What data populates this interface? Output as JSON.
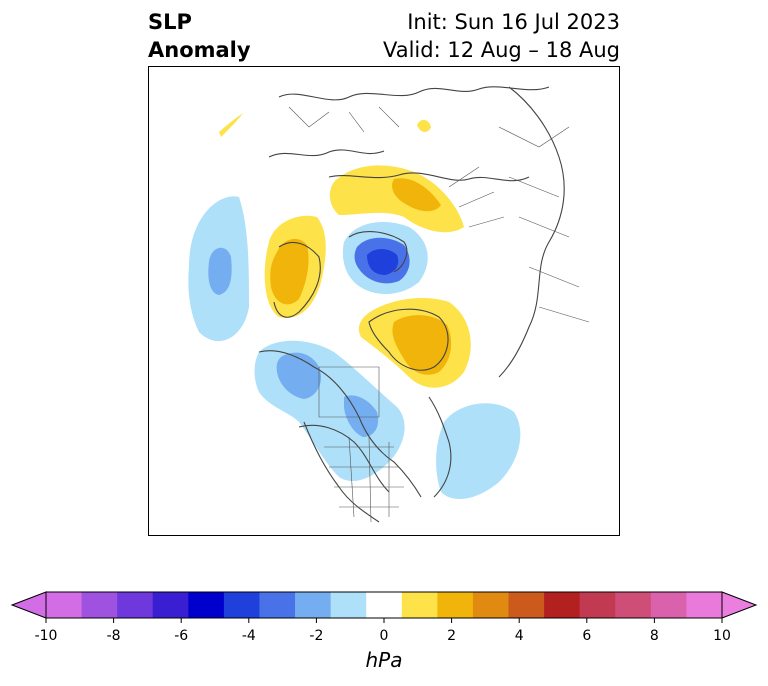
{
  "title": {
    "left_line1": "SLP",
    "left_line2": "Anomaly",
    "right_line1": "Init: Sun 16 Jul 2023",
    "right_line2": "Valid: 12 Aug – 18 Aug"
  },
  "colorbar": {
    "units": "hPa",
    "ticks": [
      "-10",
      "-8",
      "-6",
      "-4",
      "-2",
      "0",
      "2",
      "4",
      "6",
      "8",
      "10"
    ],
    "levels": [
      -10,
      -9,
      -8,
      -7,
      -6,
      -5,
      -4,
      -3,
      -2,
      -1,
      1,
      2,
      3,
      4,
      5,
      6,
      7,
      8,
      9,
      10
    ],
    "colors": [
      "#d36de6",
      "#9f52e0",
      "#6f38dc",
      "#3a1fd2",
      "#0000cc",
      "#2040dc",
      "#4a72e8",
      "#75aef0",
      "#aee0fa",
      "#ffffff",
      "#fde24a",
      "#f1b40a",
      "#e08a12",
      "#cc5a1c",
      "#b2211f",
      "#c23a52",
      "#cf4e78",
      "#da62ad",
      "#e97ada"
    ],
    "under_color": "#d36de6",
    "over_color": "#ea7fe0"
  },
  "map": {
    "projection": "north-polar-stereographic",
    "anomaly_features": [
      {
        "name": "positive-anomaly-northern-europe",
        "level": 1
      },
      {
        "name": "negative-anomaly-barents-kara-sea",
        "level": -7
      },
      {
        "name": "positive-anomaly-greenland",
        "level": 3
      },
      {
        "name": "positive-anomaly-east-siberia",
        "level": 3
      },
      {
        "name": "negative-anomaly-north-pacific",
        "level": -3
      },
      {
        "name": "negative-anomaly-alaska-canada",
        "level": -3
      },
      {
        "name": "negative-anomaly-north-atlantic",
        "level": -1
      }
    ]
  }
}
